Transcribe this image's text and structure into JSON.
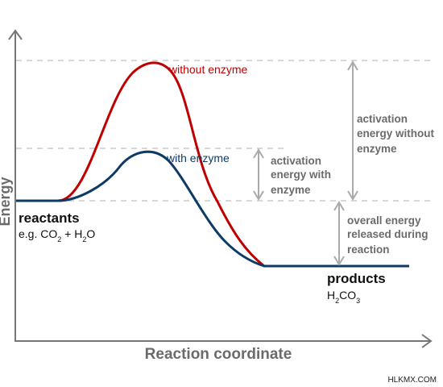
{
  "diagram": {
    "y_axis_label": "Energy",
    "x_axis_label": "Reaction coordinate",
    "curves": {
      "without_enzyme": {
        "label": "without enzyme",
        "color": "#c00000"
      },
      "with_enzyme": {
        "label": "with enzyme",
        "color": "#0d3b66"
      }
    },
    "reactants": {
      "title": "reactants",
      "formula": "e.g. CO2 + H2O"
    },
    "products": {
      "title": "products",
      "formula": "H2CO3"
    },
    "annotations": {
      "activation_with": [
        "activation",
        "energy with",
        "enzyme"
      ],
      "activation_without": [
        "activation",
        "energy without",
        "enzyme"
      ],
      "overall": [
        "overall energy",
        "released during",
        "reaction"
      ]
    },
    "watermark": "HLKMX.COM",
    "colors": {
      "axis": "#777777",
      "guide": "#cccccc",
      "arrow": "#aaaaaa",
      "annotation_text": "#6b6b6b"
    }
  }
}
